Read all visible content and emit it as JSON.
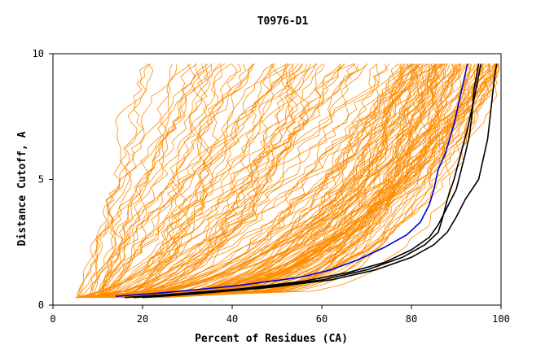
{
  "chart_data": {
    "type": "line",
    "title": "T0976-D1",
    "xlabel": "Percent of Residues (CA)",
    "ylabel": "Distance Cutoff, A",
    "xlim": [
      0,
      100
    ],
    "ylim": [
      0,
      10
    ],
    "x_ticks": [
      "0",
      "20",
      "40",
      "60",
      "80",
      "100"
    ],
    "y_ticks": [
      "0",
      "5",
      "10"
    ],
    "colors": {
      "background_curves": "#ff8c00",
      "highlight_blue": "#0000cc",
      "highlight_black": "#000000",
      "axis": "#000000"
    },
    "highlight_series": [
      {
        "color": "#0000cc",
        "x": [
          14,
          25,
          40,
          55,
          62,
          68,
          74,
          79,
          82,
          84,
          85,
          86,
          87.5,
          88.5,
          89.5,
          90.5,
          91.5,
          92.5
        ],
        "y": [
          0.35,
          0.5,
          0.75,
          1.1,
          1.4,
          1.8,
          2.3,
          2.8,
          3.3,
          4.0,
          4.6,
          5.4,
          6.0,
          6.6,
          7.2,
          8.0,
          8.8,
          9.6
        ]
      },
      {
        "color": "#000000",
        "x": [
          16,
          28,
          42,
          56,
          66,
          74,
          80,
          84,
          86,
          88,
          90,
          91,
          92,
          93,
          93.5,
          94,
          95
        ],
        "y": [
          0.3,
          0.45,
          0.65,
          0.95,
          1.3,
          1.7,
          2.2,
          2.7,
          3.2,
          3.9,
          4.6,
          5.3,
          6.0,
          6.8,
          7.6,
          8.6,
          9.6
        ]
      },
      {
        "color": "#000000",
        "x": [
          18,
          30,
          46,
          60,
          70,
          78,
          83,
          86,
          87,
          88,
          89.5,
          91,
          92.5,
          94,
          95.5
        ],
        "y": [
          0.3,
          0.45,
          0.7,
          1.0,
          1.4,
          1.9,
          2.4,
          2.9,
          3.5,
          4.2,
          5.0,
          6.0,
          7.0,
          8.2,
          9.6
        ]
      },
      {
        "color": "#000000",
        "x": [
          20,
          32,
          48,
          62,
          72,
          80,
          85,
          88,
          90,
          92,
          95,
          96,
          97,
          97.5,
          98,
          98.5,
          99
        ],
        "y": [
          0.3,
          0.45,
          0.7,
          1.0,
          1.4,
          1.9,
          2.4,
          2.9,
          3.5,
          4.2,
          5.0,
          5.8,
          6.6,
          7.4,
          8.2,
          9.0,
          9.6
        ]
      }
    ]
  }
}
